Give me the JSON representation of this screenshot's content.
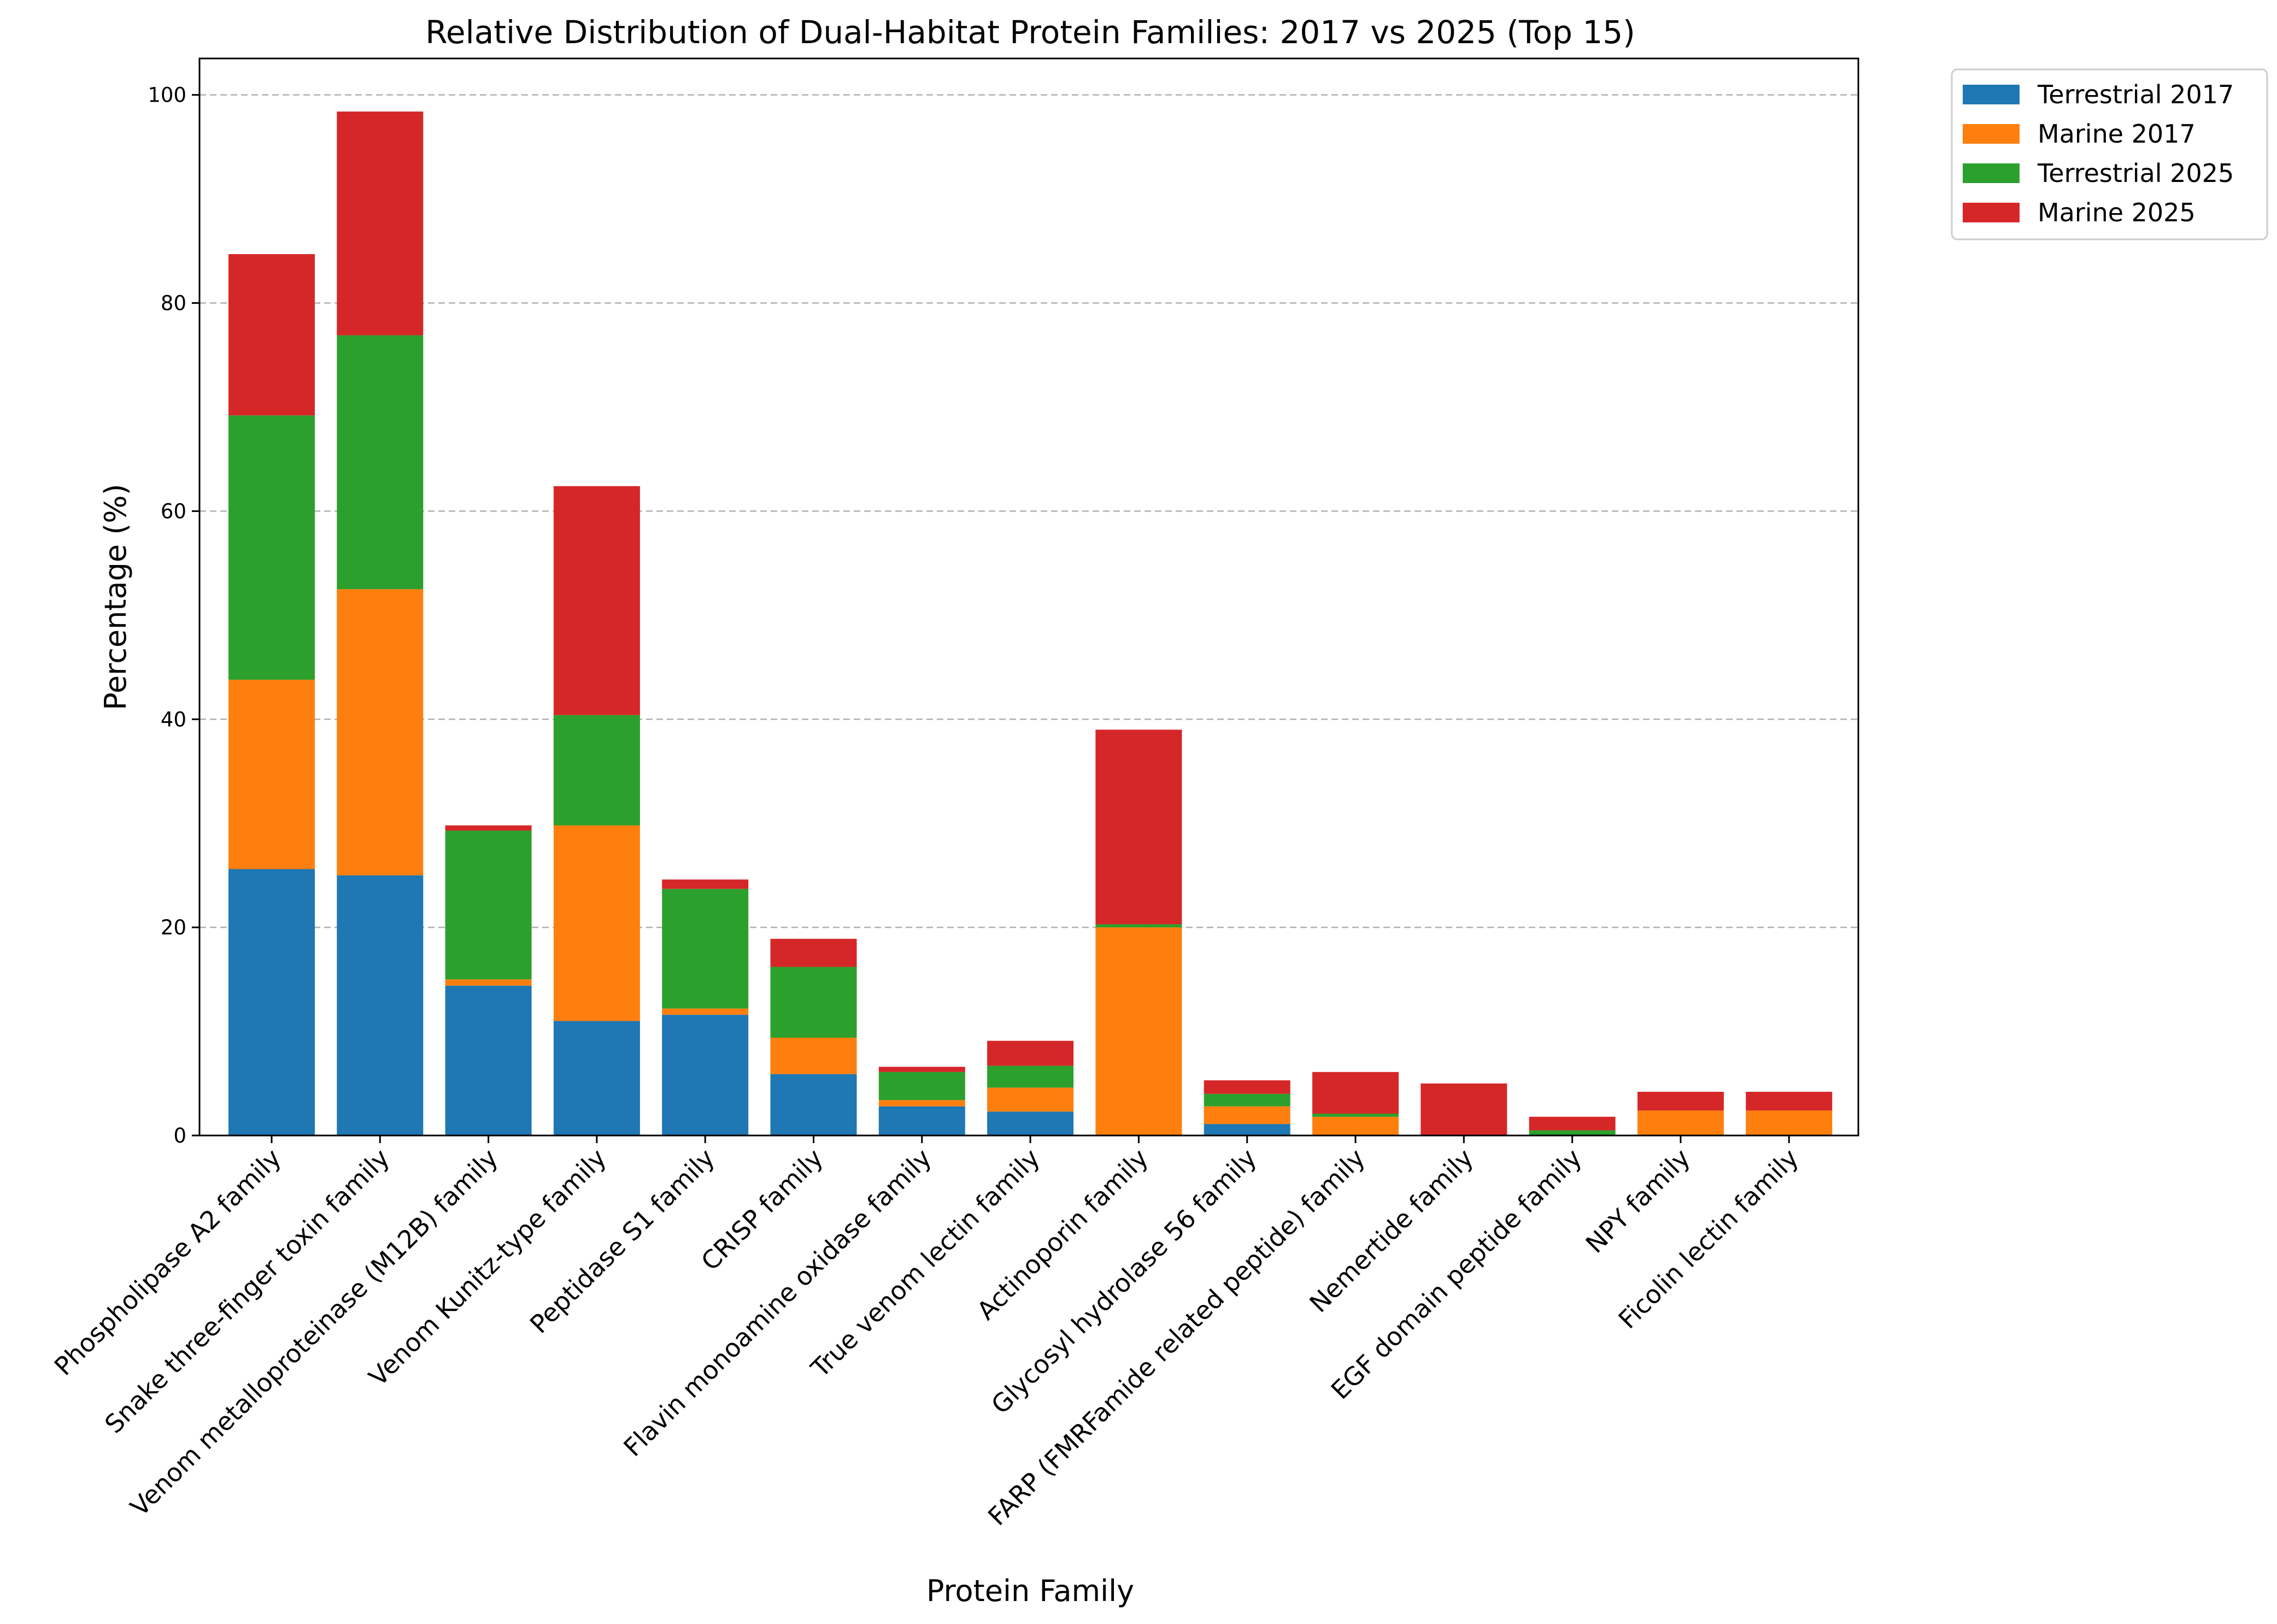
{
  "chart_data": {
    "type": "bar",
    "stacked": true,
    "title": "Relative Distribution of Dual-Habitat Protein Families: 2017 vs 2025 (Top 15)",
    "xlabel": "Protein Family",
    "ylabel": "Percentage (%)",
    "ylim": [
      0,
      103.5
    ],
    "yticks": [
      0,
      20,
      40,
      60,
      80,
      100
    ],
    "grid": "y-dashed",
    "legend_position": "outside-top-right",
    "categories": [
      "Phospholipase A2 family",
      "Snake three-finger toxin family",
      "Venom metalloproteinase (M12B) family",
      "Venom Kunitz-type family",
      "Peptidase S1 family",
      "CRISP family",
      "Flavin monoamine oxidase family",
      "True venom lectin family",
      "Actinoporin family",
      "Glycosyl hydrolase 56 family",
      "FARP (FMRFamide related peptide) family",
      "Nemertide family",
      "EGF domain peptide family",
      "NPY family",
      "Ficolin lectin family"
    ],
    "series": [
      {
        "name": "Terrestrial 2017",
        "color": "#1f77b4",
        "values": [
          25.6,
          25.0,
          14.4,
          11.0,
          11.6,
          5.9,
          2.8,
          2.3,
          0.0,
          1.1,
          0.0,
          0.0,
          0.0,
          0.0,
          0.0
        ]
      },
      {
        "name": "Marine 2017",
        "color": "#ff7f0e",
        "values": [
          18.2,
          27.5,
          0.6,
          18.8,
          0.6,
          3.5,
          0.6,
          2.3,
          20.0,
          1.7,
          1.8,
          0.0,
          0.0,
          2.4,
          2.4
        ]
      },
      {
        "name": "Terrestrial 2025",
        "color": "#2ca02c",
        "values": [
          25.4,
          24.4,
          14.3,
          10.6,
          11.5,
          6.8,
          2.7,
          2.1,
          0.3,
          1.2,
          0.3,
          0.0,
          0.5,
          0.0,
          0.0
        ]
      },
      {
        "name": "Marine 2025",
        "color": "#d62728",
        "values": [
          15.5,
          21.5,
          0.5,
          22.0,
          0.9,
          2.7,
          0.5,
          2.4,
          18.7,
          1.3,
          4.0,
          5.0,
          1.3,
          1.8,
          1.8
        ]
      }
    ]
  }
}
